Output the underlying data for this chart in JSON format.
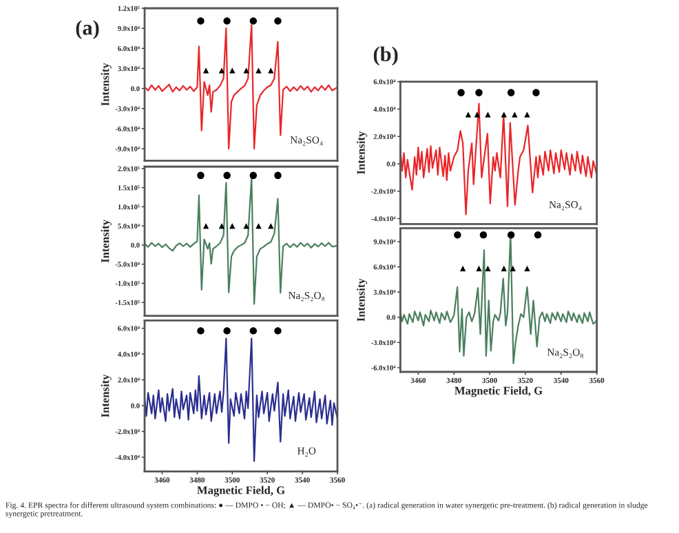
{
  "chart_data": [
    {
      "type": "line",
      "title": "(a)",
      "ylabel": "Intensity",
      "xlim": [
        3450,
        3560
      ],
      "ylim": [
        -108000,
        120000
      ],
      "tick_labels": "y",
      "yticks": [
        {
          "value": -90000,
          "label": "-9.0x10⁴"
        },
        {
          "value": -60000,
          "label": "-6.0x10⁴"
        },
        {
          "value": -30000,
          "label": "-3.0x10⁴"
        },
        {
          "value": 0,
          "label": "0.0"
        },
        {
          "value": 30000,
          "label": "3.0x10⁴"
        },
        {
          "value": 60000,
          "label": "6.0x10⁴"
        },
        {
          "value": 90000,
          "label": "9.0x10⁴"
        },
        {
          "value": 120000,
          "label": "1.2x10⁵"
        }
      ],
      "annotations": [
        "Na₂SO₄"
      ],
      "series": [
        {
          "color": "#e8262a",
          "x": [
            3450,
            3452,
            3454,
            3456,
            3458,
            3460,
            3462,
            3464,
            3466,
            3468,
            3470,
            3472,
            3474,
            3476,
            3478,
            3480,
            3481,
            3482.5,
            3484,
            3486,
            3487,
            3488,
            3489,
            3491,
            3493,
            3495,
            3496.5,
            3498,
            3499.5,
            3501,
            3503,
            3505,
            3507,
            3509,
            3511,
            3512.5,
            3514,
            3516,
            3518,
            3520,
            3522,
            3524,
            3526,
            3527.5,
            3529,
            3531,
            3533,
            3535,
            3537,
            3539,
            3541,
            3543,
            3545,
            3547,
            3549,
            3551,
            3553,
            3555,
            3557,
            3560
          ],
          "values": [
            2000,
            -3000,
            5000,
            -2000,
            4000,
            -4000,
            1000,
            6000,
            -5000,
            2000,
            -3000,
            4000,
            -2000,
            3000,
            -4000,
            2000,
            63000,
            -63000,
            10000,
            -10000,
            5000,
            -35000,
            -5000,
            -2000,
            4000,
            15000,
            90000,
            -90000,
            -20000,
            -10000,
            -5000,
            0,
            4000,
            15000,
            95000,
            -90000,
            -25000,
            -10000,
            -3000,
            2000,
            5000,
            15000,
            70000,
            -70000,
            -2000,
            3000,
            -4000,
            2000,
            -3000,
            4000,
            -2000,
            3000,
            -5000,
            2000,
            -3000,
            4000,
            -2000,
            5000,
            -3000,
            2000
          ]
        },
        {
          "type": "scatter",
          "marker": "circle",
          "color": "#000000",
          "x": [
            3482,
            3497,
            3512,
            3526
          ],
          "values": [
            101000,
            101000,
            101000,
            101000
          ]
        },
        {
          "type": "scatter",
          "marker": "triangle",
          "color": "#000000",
          "x": [
            3485,
            3494,
            3500,
            3508,
            3515,
            3522
          ],
          "values": [
            27000,
            27000,
            27000,
            27000,
            27000,
            27000
          ]
        }
      ]
    },
    {
      "type": "line",
      "ylabel": "Intensity",
      "xlim": [
        3450,
        3560
      ],
      "ylim": [
        -185000,
        205000
      ],
      "tick_labels": "y",
      "yticks": [
        {
          "value": -150000,
          "label": "-1.5x10⁵"
        },
        {
          "value": -100000,
          "label": "-1.0x10⁵"
        },
        {
          "value": -50000,
          "label": "-5.0x10⁴"
        },
        {
          "value": 0,
          "label": "0.0"
        },
        {
          "value": 50000,
          "label": "5.0x10⁴"
        },
        {
          "value": 100000,
          "label": "1.0x10⁵"
        },
        {
          "value": 150000,
          "label": "1.5x10⁵"
        },
        {
          "value": 200000,
          "label": "2.0x10⁵"
        }
      ],
      "annotations": [
        "Na₂S₂O₈"
      ],
      "series": [
        {
          "color": "#4a7f5e",
          "x": [
            3450,
            3452,
            3454,
            3456,
            3458,
            3460,
            3462,
            3464,
            3466,
            3468,
            3470,
            3472,
            3474,
            3476,
            3478,
            3480,
            3481,
            3482.5,
            3484,
            3486,
            3487,
            3488,
            3489,
            3491,
            3493,
            3495,
            3496.5,
            3498,
            3499.5,
            3501,
            3503,
            3505,
            3507,
            3509,
            3511,
            3512.5,
            3514,
            3516,
            3518,
            3520,
            3522,
            3524,
            3526,
            3527.5,
            3529,
            3531,
            3533,
            3535,
            3537,
            3539,
            3541,
            3543,
            3545,
            3547,
            3549,
            3551,
            3553,
            3555,
            3557,
            3560
          ],
          "values": [
            3000,
            -5000,
            6000,
            -3000,
            4000,
            -6000,
            2000,
            -8000,
            -15000,
            -2000,
            5000,
            -3000,
            4000,
            -5000,
            3000,
            10000,
            130000,
            -117000,
            15000,
            -10000,
            5000,
            -49000,
            -10000,
            -3000,
            5000,
            25000,
            163000,
            -124000,
            -30000,
            -15000,
            -5000,
            0,
            5000,
            25000,
            175000,
            -154000,
            -30000,
            -10000,
            -4000,
            3000,
            8000,
            30000,
            121000,
            -125000,
            -3000,
            4000,
            -6000,
            3000,
            -5000,
            6000,
            -3000,
            4000,
            -7000,
            3000,
            -4000,
            5000,
            -3000,
            6000,
            -4000,
            -2000
          ]
        },
        {
          "type": "scatter",
          "marker": "circle",
          "color": "#000000",
          "x": [
            3482,
            3497,
            3512,
            3526
          ],
          "values": [
            182000,
            182000,
            182000,
            182000
          ]
        },
        {
          "type": "scatter",
          "marker": "triangle",
          "color": "#000000",
          "x": [
            3485,
            3494,
            3500,
            3508,
            3515,
            3522
          ],
          "values": [
            50000,
            50000,
            50000,
            50000,
            50000,
            50000
          ]
        }
      ]
    },
    {
      "type": "line",
      "ylabel": "Intensity",
      "xlabel": "Magnetic Field, G",
      "xlim": [
        3450,
        3560
      ],
      "ylim": [
        -51000,
        66000
      ],
      "xticks": [
        3460,
        3480,
        3500,
        3520,
        3540,
        3560
      ],
      "yticks": [
        {
          "value": -40000,
          "label": "-4.0x10⁴"
        },
        {
          "value": -20000,
          "label": "-2.0x10⁴"
        },
        {
          "value": 0,
          "label": "0.0"
        },
        {
          "value": 20000,
          "label": "2.0x10⁴"
        },
        {
          "value": 40000,
          "label": "4.0x10⁴"
        },
        {
          "value": 60000,
          "label": "6.0x10⁴"
        }
      ],
      "annotations": [
        "H₂O",
        "Fig. 4. EPR spectra for different ultrasound system combinations: ● — DMPO • − OH; ▲ — DMPO• − SO₄•⁻. (a) radical generation in water synergetic pre-treatment. (b) radical generation in sludge synergetic pretreatment."
      ],
      "series": [
        {
          "color": "#2b2f8f",
          "x": [
            3450,
            3451,
            3452,
            3454,
            3455,
            3456,
            3458,
            3459,
            3460,
            3462,
            3463,
            3464,
            3466,
            3467,
            3468,
            3470,
            3471,
            3472,
            3474,
            3475,
            3476,
            3478,
            3479,
            3480,
            3481,
            3482.5,
            3484,
            3485,
            3487,
            3488,
            3490,
            3491,
            3493,
            3494,
            3495,
            3496.5,
            3498,
            3499,
            3501,
            3502,
            3504,
            3505,
            3507,
            3508,
            3509,
            3511,
            3512.5,
            3514,
            3515,
            3517,
            3518,
            3520,
            3521,
            3523,
            3524,
            3526,
            3527.5,
            3529,
            3530,
            3532,
            3533,
            3535,
            3536,
            3538,
            3539,
            3541,
            3542,
            3544,
            3545,
            3547,
            3548,
            3550,
            3551,
            3553,
            3554,
            3556,
            3557,
            3558,
            3560
          ],
          "values": [
            5000,
            -8000,
            10000,
            -6000,
            8000,
            -10000,
            12000,
            -5000,
            6000,
            -12000,
            9000,
            -4000,
            13000,
            -9000,
            5000,
            -10000,
            11000,
            -3000,
            8000,
            -11000,
            10000,
            -6000,
            12000,
            -4000,
            23000,
            -10000,
            8000,
            -7000,
            10000,
            -12000,
            9000,
            -6000,
            11000,
            -5000,
            10000,
            52000,
            -29000,
            5000,
            -8000,
            10000,
            -6000,
            9000,
            -10000,
            11000,
            -2000,
            52000,
            -43000,
            8000,
            -9000,
            11000,
            -6000,
            10000,
            -12000,
            9000,
            -4000,
            18000,
            -28000,
            9000,
            -8000,
            12000,
            -10000,
            7000,
            -12000,
            10000,
            -5000,
            9000,
            -11000,
            6000,
            -9000,
            11000,
            -13000,
            5000,
            -10000,
            8000,
            -14000,
            4000,
            -15000,
            2000,
            -10000
          ]
        },
        {
          "type": "scatter",
          "marker": "circle",
          "color": "#000000",
          "x": [
            3482,
            3497,
            3512,
            3526
          ],
          "values": [
            58000,
            58000,
            58000,
            58000
          ]
        }
      ]
    },
    {
      "type": "line",
      "title": "(b)",
      "ylabel": "Intensity",
      "xlim": [
        3450,
        3560
      ],
      "ylim": [
        -44000,
        60000
      ],
      "tick_labels": "y",
      "yticks": [
        {
          "value": -40000,
          "label": "-4.0x10⁴"
        },
        {
          "value": -20000,
          "label": "-2.0x10⁴"
        },
        {
          "value": 0,
          "label": "0.0"
        },
        {
          "value": 20000,
          "label": "2.0x10⁴"
        },
        {
          "value": 40000,
          "label": "4.0x10⁴"
        },
        {
          "value": 60000,
          "label": "6.0x10⁴"
        }
      ],
      "annotations": [
        "Na₂SO₄"
      ],
      "series": [
        {
          "color": "#e8262a",
          "x": [
            3450,
            3451,
            3452,
            3453,
            3454,
            3455,
            3456.6,
            3458,
            3459,
            3460,
            3461,
            3462,
            3463,
            3465,
            3466,
            3467,
            3468,
            3470,
            3471,
            3472,
            3474,
            3475,
            3476,
            3477,
            3478,
            3480,
            3482,
            3483.6,
            3485,
            3486.7,
            3488,
            3490,
            3491,
            3492,
            3494,
            3495.5,
            3497,
            3498.8,
            3500.3,
            3502,
            3503,
            3504,
            3506,
            3507.8,
            3510,
            3511.5,
            3514.2,
            3516,
            3517,
            3519,
            3521.4,
            3524,
            3526,
            3527,
            3528,
            3530,
            3531,
            3533,
            3534,
            3536,
            3537,
            3539,
            3540,
            3542,
            3543,
            3545,
            3546,
            3548,
            3549,
            3551,
            3552,
            3554,
            3555,
            3557,
            3558,
            3560
          ],
          "values": [
            10000,
            -5000,
            8000,
            -10000,
            3000,
            -6000,
            -19000,
            5000,
            -8000,
            12000,
            -4000,
            9000,
            -10000,
            11000,
            -6000,
            13000,
            -3000,
            10000,
            -8000,
            12000,
            -9000,
            6000,
            -12000,
            8000,
            -5000,
            5000,
            10000,
            24000,
            15000,
            -37000,
            -5000,
            15000,
            -15000,
            5000,
            44000,
            -10000,
            5000,
            22000,
            -29000,
            5000,
            -5000,
            8000,
            -10000,
            36000,
            -31000,
            30000,
            -30000,
            -5000,
            5000,
            10000,
            28000,
            -21000,
            5000,
            -10000,
            6000,
            -8000,
            9000,
            -5000,
            10000,
            -7000,
            8000,
            -6000,
            10000,
            -4000,
            8000,
            -8000,
            7000,
            -5000,
            9000,
            -7000,
            6000,
            -9000,
            5000,
            -10000,
            2000,
            -8000
          ]
        },
        {
          "type": "scatter",
          "marker": "circle",
          "color": "#000000",
          "x": [
            3484,
            3494,
            3512,
            3526
          ],
          "values": [
            52000,
            52000,
            52000,
            52000
          ]
        },
        {
          "type": "scatter",
          "marker": "triangle",
          "color": "#000000",
          "x": [
            3488,
            3493,
            3499,
            3508,
            3514,
            3521
          ],
          "values": [
            36000,
            36000,
            36000,
            36000,
            36000,
            36000
          ]
        }
      ]
    },
    {
      "type": "line",
      "ylabel": "Intensity",
      "xlabel": "Magnetic Field, G",
      "xlim": [
        3450,
        3560
      ],
      "ylim": [
        -65000,
        106000
      ],
      "xticks": [
        3460,
        3480,
        3500,
        3520,
        3540,
        3560
      ],
      "yticks": [
        {
          "value": -60000,
          "label": "-6.0x10⁴"
        },
        {
          "value": -30000,
          "label": "-3.0x10⁴"
        },
        {
          "value": 0,
          "label": "0.0"
        },
        {
          "value": 30000,
          "label": "3.0x10⁴"
        },
        {
          "value": 60000,
          "label": "6.0x10⁴"
        },
        {
          "value": 90000,
          "label": "9.0x10⁴"
        }
      ],
      "annotations": [
        "Na₂S₂O₈"
      ],
      "series": [
        {
          "color": "#4a7f5e",
          "x": [
            3450,
            3451,
            3452,
            3454,
            3455,
            3457,
            3458,
            3460,
            3461,
            3463,
            3464,
            3466,
            3467,
            3469,
            3470,
            3472,
            3473,
            3475,
            3476,
            3478,
            3480,
            3481.9,
            3483.2,
            3484.5,
            3485.5,
            3487,
            3488.5,
            3490,
            3491.5,
            3493.4,
            3494.8,
            3496.9,
            3498,
            3499.5,
            3500.7,
            3502,
            3503,
            3505,
            3506,
            3507.6,
            3509,
            3510,
            3511.7,
            3513.3,
            3514.5,
            3516,
            3517.5,
            3519,
            3521,
            3523,
            3524.5,
            3526.5,
            3528,
            3529.5,
            3531,
            3532,
            3534,
            3535,
            3537,
            3538,
            3540,
            3541,
            3543,
            3544,
            3546,
            3547,
            3549,
            3550,
            3552,
            3553,
            3555,
            3556,
            3558,
            3560
          ],
          "values": [
            5000,
            -5000,
            3000,
            -8000,
            4000,
            -6000,
            7000,
            -4000,
            6000,
            -10000,
            3000,
            -5000,
            8000,
            -4000,
            6000,
            -7000,
            5000,
            -3000,
            7000,
            -6000,
            2000,
            36000,
            -41000,
            10000,
            -46000,
            0,
            6000,
            -5000,
            4000,
            35000,
            -20000,
            80000,
            -46000,
            20000,
            -40000,
            -5000,
            3000,
            -4000,
            5000,
            46000,
            -10000,
            5000,
            100000,
            -55000,
            -30000,
            -10000,
            4000,
            0,
            36000,
            -20000,
            20000,
            -35000,
            0,
            6000,
            -5000,
            4000,
            -7000,
            5000,
            -3000,
            6000,
            -5000,
            4000,
            -6000,
            7000,
            -4000,
            5000,
            -6000,
            3000,
            -7000,
            5000,
            -5000,
            6000,
            -8000,
            -4000
          ]
        },
        {
          "type": "scatter",
          "marker": "circle",
          "color": "#000000",
          "x": [
            3482,
            3496.5,
            3512,
            3527
          ],
          "values": [
            98000,
            98000,
            98000,
            98000
          ]
        },
        {
          "type": "scatter",
          "marker": "triangle",
          "color": "#000000",
          "x": [
            3485,
            3494,
            3499,
            3508,
            3513,
            3521
          ],
          "values": [
            58000,
            58000,
            58000,
            58000,
            58000,
            58000
          ]
        }
      ]
    }
  ]
}
